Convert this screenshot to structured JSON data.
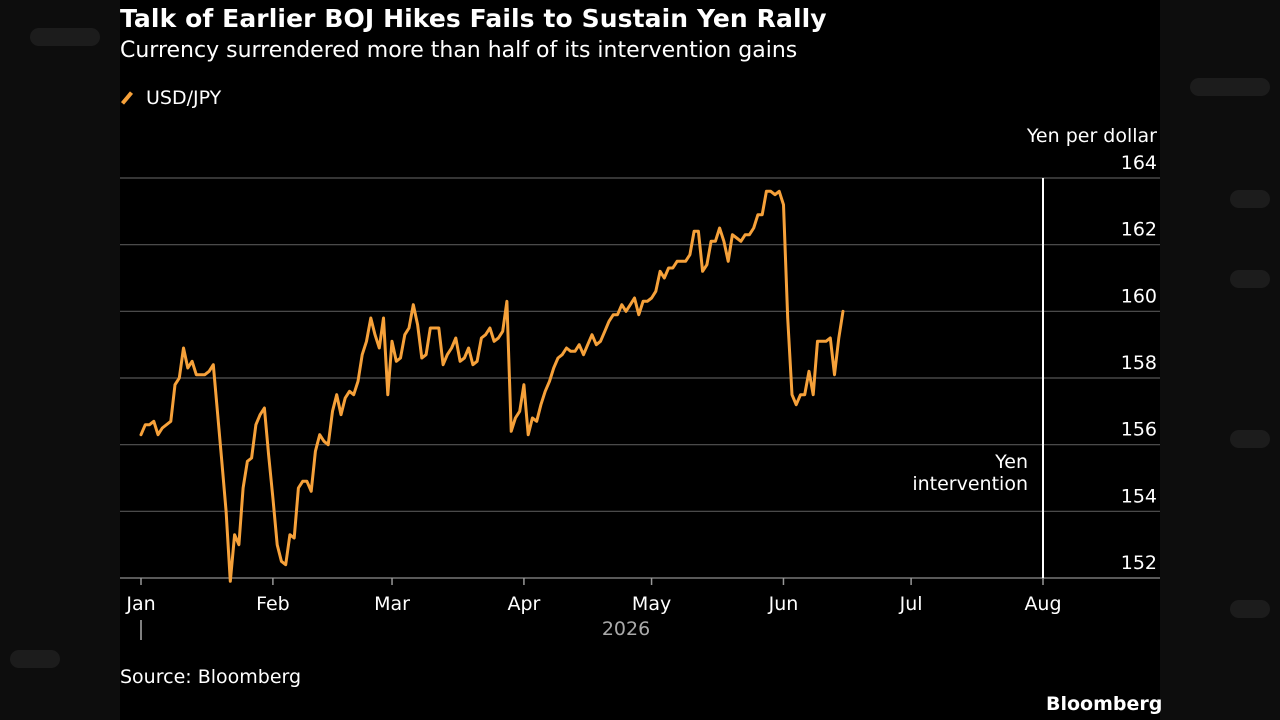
{
  "title": "Talk of Earlier BOJ Hikes Fails to Sustain Yen Rally",
  "subtitle": "Currency surrendered more than half of its intervention gains",
  "source": "Source: Bloomberg",
  "brand": "Bloomberg",
  "colors": {
    "line": "#f6a13a",
    "grid": "#555555",
    "background": "#000000",
    "annotation": "#ffffff"
  },
  "chart_data": {
    "type": "line",
    "title": "Talk of Earlier BOJ Hikes Fails to Sustain Yen Rally",
    "subtitle": "Currency surrendered more than half of its intervention gains",
    "ylabel": "Yen per dollar",
    "y_axis_side": "right",
    "ylim": [
      151.8,
      164.5
    ],
    "yticks": [
      152,
      154,
      156,
      158,
      160,
      162,
      164
    ],
    "grid": "horizontal",
    "legend": {
      "position": "top-left",
      "entries": [
        "USD/JPY"
      ]
    },
    "x_axis": {
      "months": [
        "Jan",
        "Feb",
        "Mar",
        "Apr",
        "May",
        "Jun",
        "Jul",
        "Aug"
      ],
      "year_label": "2026",
      "range_days": [
        -2,
        226
      ]
    },
    "annotation": {
      "text": [
        "Yen",
        "intervention"
      ],
      "x_day": 212
    },
    "series": [
      {
        "name": "USD/JPY",
        "x_unit": "day of year 2026",
        "points": [
          [
            0,
            156.3
          ],
          [
            1,
            156.6
          ],
          [
            2,
            156.6
          ],
          [
            3,
            156.7
          ],
          [
            4,
            156.3
          ],
          [
            5,
            156.5
          ],
          [
            7,
            156.7
          ],
          [
            8,
            157.8
          ],
          [
            9,
            158.0
          ],
          [
            10,
            158.9
          ],
          [
            11,
            158.3
          ],
          [
            12,
            158.5
          ],
          [
            13,
            158.1
          ],
          [
            15,
            158.1
          ],
          [
            16,
            158.2
          ],
          [
            17,
            158.4
          ],
          [
            19,
            155.5
          ],
          [
            20,
            154.0
          ],
          [
            21,
            151.9
          ],
          [
            22,
            153.3
          ],
          [
            23,
            153.0
          ],
          [
            24,
            154.7
          ],
          [
            25,
            155.5
          ],
          [
            26,
            155.6
          ],
          [
            27,
            156.6
          ],
          [
            28,
            156.9
          ],
          [
            29,
            157.1
          ],
          [
            30,
            155.7
          ],
          [
            31,
            154.4
          ],
          [
            32,
            153.0
          ],
          [
            33,
            152.5
          ],
          [
            34,
            152.4
          ],
          [
            35,
            153.3
          ],
          [
            36,
            153.2
          ],
          [
            37,
            154.7
          ],
          [
            38,
            154.9
          ],
          [
            39,
            154.9
          ],
          [
            40,
            154.6
          ],
          [
            41,
            155.8
          ],
          [
            42,
            156.3
          ],
          [
            43,
            156.1
          ],
          [
            44,
            156.0
          ],
          [
            45,
            157.0
          ],
          [
            46,
            157.5
          ],
          [
            47,
            156.9
          ],
          [
            48,
            157.4
          ],
          [
            49,
            157.6
          ],
          [
            50,
            157.5
          ],
          [
            51,
            157.9
          ],
          [
            52,
            158.7
          ],
          [
            53,
            159.1
          ],
          [
            54,
            159.8
          ],
          [
            55,
            159.3
          ],
          [
            56,
            158.9
          ],
          [
            57,
            159.8
          ],
          [
            58,
            157.5
          ],
          [
            59,
            159.1
          ],
          [
            60,
            158.5
          ],
          [
            61,
            158.6
          ],
          [
            62,
            159.3
          ],
          [
            63,
            159.5
          ],
          [
            64,
            160.2
          ],
          [
            65,
            159.6
          ],
          [
            66,
            158.6
          ],
          [
            67,
            158.7
          ],
          [
            68,
            159.5
          ],
          [
            69,
            159.5
          ],
          [
            70,
            159.5
          ],
          [
            71,
            158.4
          ],
          [
            72,
            158.7
          ],
          [
            73,
            158.9
          ],
          [
            74,
            159.2
          ],
          [
            75,
            158.5
          ],
          [
            76,
            158.6
          ],
          [
            77,
            158.9
          ],
          [
            78,
            158.4
          ],
          [
            79,
            158.5
          ],
          [
            80,
            159.2
          ],
          [
            81,
            159.3
          ],
          [
            82,
            159.5
          ],
          [
            83,
            159.1
          ],
          [
            84,
            159.2
          ],
          [
            85,
            159.4
          ],
          [
            86,
            160.3
          ],
          [
            87,
            156.4
          ],
          [
            88,
            156.8
          ],
          [
            89,
            157.0
          ],
          [
            90,
            157.8
          ],
          [
            91,
            156.3
          ],
          [
            92,
            156.8
          ],
          [
            93,
            156.7
          ],
          [
            94,
            157.2
          ],
          [
            95,
            157.6
          ],
          [
            96,
            157.9
          ],
          [
            97,
            158.3
          ],
          [
            98,
            158.6
          ],
          [
            99,
            158.7
          ],
          [
            100,
            158.9
          ],
          [
            101,
            158.8
          ],
          [
            102,
            158.8
          ],
          [
            103,
            159.0
          ],
          [
            104,
            158.7
          ],
          [
            105,
            159.0
          ],
          [
            106,
            159.3
          ],
          [
            107,
            159.0
          ],
          [
            108,
            159.1
          ],
          [
            109,
            159.4
          ],
          [
            110,
            159.7
          ],
          [
            111,
            159.9
          ],
          [
            112,
            159.9
          ],
          [
            113,
            160.2
          ],
          [
            114,
            160.0
          ],
          [
            115,
            160.2
          ],
          [
            116,
            160.4
          ],
          [
            117,
            159.9
          ],
          [
            118,
            160.3
          ],
          [
            119,
            160.3
          ],
          [
            120,
            160.4
          ],
          [
            121,
            160.6
          ],
          [
            122,
            161.2
          ],
          [
            123,
            161.0
          ],
          [
            124,
            161.3
          ],
          [
            125,
            161.3
          ],
          [
            126,
            161.5
          ],
          [
            127,
            161.5
          ],
          [
            128,
            161.5
          ],
          [
            129,
            161.7
          ],
          [
            130,
            162.4
          ],
          [
            131,
            162.4
          ],
          [
            132,
            161.2
          ],
          [
            133,
            161.4
          ],
          [
            134,
            162.1
          ],
          [
            135,
            162.1
          ],
          [
            136,
            162.5
          ],
          [
            137,
            162.1
          ],
          [
            138,
            161.5
          ],
          [
            139,
            162.3
          ],
          [
            140,
            162.2
          ],
          [
            141,
            162.1
          ],
          [
            142,
            162.3
          ],
          [
            143,
            162.3
          ],
          [
            144,
            162.5
          ],
          [
            145,
            162.9
          ],
          [
            146,
            162.9
          ],
          [
            147,
            163.6
          ],
          [
            148,
            163.6
          ],
          [
            149,
            163.5
          ],
          [
            150,
            163.6
          ],
          [
            151,
            163.2
          ],
          [
            152,
            159.8
          ],
          [
            153,
            157.5
          ],
          [
            154,
            157.2
          ],
          [
            155,
            157.5
          ],
          [
            156,
            157.5
          ],
          [
            157,
            158.2
          ],
          [
            158,
            157.5
          ],
          [
            159,
            159.1
          ],
          [
            160,
            159.1
          ],
          [
            161,
            159.1
          ],
          [
            162,
            159.2
          ],
          [
            163,
            158.1
          ],
          [
            164,
            159.2
          ],
          [
            165,
            160.0
          ]
        ]
      }
    ]
  }
}
